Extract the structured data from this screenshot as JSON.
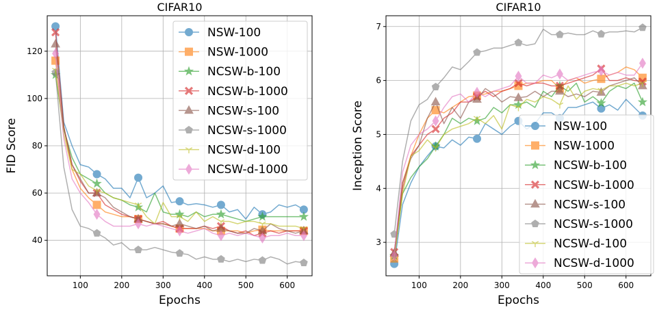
{
  "chart_data": [
    {
      "type": "line",
      "title": "CIFAR10",
      "xlabel": "Epochs",
      "ylabel": "FID Score",
      "xlim": [
        20,
        660
      ],
      "ylim": [
        25,
        135
      ],
      "xticks": [
        100,
        200,
        300,
        400,
        500,
        600
      ],
      "yticks": [
        40,
        60,
        80,
        100,
        120
      ],
      "grid": true,
      "legend_position": "top-right",
      "x": [
        40,
        60,
        80,
        100,
        120,
        140,
        160,
        180,
        200,
        220,
        240,
        260,
        280,
        300,
        320,
        340,
        360,
        380,
        400,
        420,
        440,
        460,
        480,
        500,
        520,
        540,
        560,
        580,
        600,
        620,
        640
      ],
      "series": [
        {
          "name": "NSW-100",
          "color": "#1f77b4",
          "marker": "circle",
          "values": [
            130.5,
            90,
            80,
            72,
            71,
            68,
            66,
            62,
            62,
            58,
            66.5,
            58,
            60,
            63,
            56,
            56.5,
            55,
            55.5,
            55,
            54,
            55,
            52,
            53,
            49,
            54,
            51,
            52,
            55,
            54,
            55,
            53
          ]
        },
        {
          "name": "NSW-1000",
          "color": "#ff7f0e",
          "marker": "square",
          "values": [
            116,
            88,
            70,
            62,
            58,
            55,
            52,
            51,
            50,
            50,
            49,
            48,
            47,
            47,
            46,
            45,
            45,
            45,
            45,
            44,
            44,
            44,
            44,
            43,
            44,
            44.5,
            44,
            44,
            44,
            44,
            44
          ]
        },
        {
          "name": "NCSW-b-100",
          "color": "#2ca02c",
          "marker": "star",
          "values": [
            110,
            87,
            75,
            68,
            66,
            64,
            60,
            58,
            57,
            55,
            54,
            52,
            60,
            52,
            51,
            51,
            50,
            52,
            50,
            51,
            51,
            50,
            49,
            48,
            49,
            50,
            50,
            50,
            50,
            50,
            50
          ]
        },
        {
          "name": "NCSW-b-1000",
          "color": "#d62728",
          "marker": "x",
          "values": [
            128,
            88,
            72,
            65,
            60,
            60,
            55,
            53,
            51,
            50,
            49,
            48,
            47,
            48,
            46,
            45,
            45,
            45,
            46,
            45,
            46,
            44,
            43,
            44,
            42,
            43,
            44,
            43,
            44,
            44,
            44
          ]
        },
        {
          "name": "NCSW-s-100",
          "color": "#8c564b",
          "marker": "triangle",
          "values": [
            123,
            88,
            72,
            66,
            60,
            60,
            58,
            54,
            52,
            50,
            49,
            48,
            47,
            47,
            46,
            47,
            46,
            45,
            46,
            44,
            45,
            44,
            43,
            43,
            45,
            44,
            47,
            45,
            44,
            43,
            44
          ]
        },
        {
          "name": "NCSW-s-1000",
          "color": "#7f7f7f",
          "marker": "pentagon",
          "values": [
            111,
            71,
            53,
            46,
            45,
            43,
            41,
            38,
            39,
            36,
            36,
            36,
            37,
            36,
            35,
            34.5,
            34,
            32,
            33,
            32,
            32,
            31,
            32,
            31,
            32,
            31.5,
            33,
            32,
            30,
            31,
            30.5
          ]
        },
        {
          "name": "NCSW-d-100",
          "color": "#bcbd22",
          "marker": "tri_down",
          "values": [
            112,
            85,
            70,
            68,
            63,
            61,
            60,
            58,
            57,
            56,
            55,
            50,
            47,
            56,
            50,
            50,
            48,
            52,
            48,
            50,
            48,
            48,
            47,
            48,
            48,
            47,
            47,
            46,
            46,
            46,
            45
          ]
        },
        {
          "name": "NCSW-d-1000",
          "color": "#e377c2",
          "marker": "diamond",
          "values": [
            119,
            83,
            66,
            60,
            56,
            51,
            48,
            46,
            46,
            46,
            47,
            46,
            47,
            46,
            45,
            44,
            43,
            44,
            45,
            43,
            42,
            43,
            42,
            43,
            42,
            41,
            42,
            42,
            43,
            42,
            42
          ]
        }
      ]
    },
    {
      "type": "line",
      "title": "CIFAR10",
      "xlabel": "Epochs",
      "ylabel": "Inception Score",
      "xlim": [
        20,
        660
      ],
      "ylim": [
        2.38,
        7.2
      ],
      "xticks": [
        100,
        200,
        300,
        400,
        500,
        600
      ],
      "yticks": [
        3,
        4,
        5,
        6,
        7
      ],
      "grid": true,
      "legend_position": "lower-right",
      "x": [
        40,
        60,
        80,
        100,
        120,
        140,
        160,
        180,
        200,
        220,
        240,
        260,
        280,
        300,
        320,
        340,
        360,
        380,
        400,
        420,
        440,
        460,
        480,
        500,
        520,
        540,
        560,
        580,
        600,
        620,
        640
      ],
      "series": [
        {
          "name": "NSW-100",
          "color": "#1f77b4",
          "marker": "circle",
          "values": [
            2.6,
            3.7,
            4.1,
            4.4,
            4.6,
            4.78,
            4.75,
            4.9,
            4.8,
            4.95,
            4.92,
            5.2,
            5.1,
            5.0,
            5.15,
            5.25,
            5.1,
            5.2,
            5.4,
            5.4,
            5.3,
            5.5,
            5.5,
            5.55,
            5.6,
            5.48,
            5.55,
            5.45,
            5.65,
            5.5,
            5.35
          ]
        },
        {
          "name": "NSW-1000",
          "color": "#ff7f0e",
          "marker": "square",
          "values": [
            2.7,
            4.1,
            4.6,
            5.0,
            5.3,
            5.45,
            5.4,
            5.5,
            5.6,
            5.7,
            5.72,
            5.75,
            5.8,
            5.8,
            5.85,
            5.9,
            5.95,
            5.95,
            6.0,
            6.0,
            5.85,
            6.0,
            6.05,
            5.95,
            6.0,
            6.03,
            6.1,
            6.15,
            6.25,
            6.2,
            6.05
          ]
        },
        {
          "name": "NCSW-b-100",
          "color": "#2ca02c",
          "marker": "star",
          "values": [
            2.75,
            3.9,
            4.2,
            4.4,
            4.55,
            4.78,
            5.0,
            5.3,
            5.2,
            5.3,
            5.25,
            5.3,
            5.5,
            5.4,
            5.55,
            5.55,
            5.6,
            5.5,
            5.8,
            5.7,
            5.9,
            5.8,
            5.95,
            5.6,
            5.7,
            5.58,
            5.8,
            5.9,
            5.85,
            5.95,
            5.6
          ]
        },
        {
          "name": "NCSW-b-1000",
          "color": "#d62728",
          "marker": "x",
          "values": [
            2.82,
            4.0,
            4.6,
            4.8,
            5.0,
            5.1,
            5.3,
            5.4,
            5.6,
            5.6,
            5.7,
            5.8,
            5.7,
            5.8,
            5.85,
            5.95,
            5.9,
            5.95,
            5.95,
            5.9,
            5.9,
            5.95,
            6.0,
            6.05,
            6.1,
            6.22,
            6.0,
            6.0,
            6.05,
            6.0,
            5.98
          ]
        },
        {
          "name": "NCSW-s-100",
          "color": "#8c564b",
          "marker": "triangle",
          "values": [
            2.8,
            4.1,
            4.55,
            4.8,
            5.3,
            5.6,
            5.2,
            5.5,
            5.3,
            5.6,
            5.65,
            5.85,
            5.75,
            5.6,
            5.7,
            5.68,
            5.7,
            5.8,
            5.7,
            5.8,
            5.8,
            5.7,
            5.75,
            5.7,
            5.8,
            5.78,
            5.9,
            5.95,
            6.0,
            6.05,
            5.9
          ]
        },
        {
          "name": "NCSW-s-1000",
          "color": "#7f7f7f",
          "marker": "pentagon",
          "values": [
            3.15,
            4.5,
            5.25,
            5.55,
            5.65,
            5.88,
            6.05,
            6.25,
            6.2,
            6.35,
            6.52,
            6.55,
            6.6,
            6.6,
            6.65,
            6.7,
            6.65,
            6.68,
            6.95,
            6.85,
            6.85,
            6.88,
            6.85,
            6.85,
            6.92,
            6.86,
            6.9,
            6.9,
            6.92,
            6.9,
            6.98
          ]
        },
        {
          "name": "NCSW-d-100",
          "color": "#bcbd22",
          "marker": "tri_down",
          "values": [
            2.7,
            3.9,
            4.6,
            4.7,
            4.9,
            4.75,
            5.0,
            5.1,
            5.15,
            5.2,
            5.3,
            5.2,
            5.35,
            5.1,
            5.55,
            5.5,
            5.65,
            5.6,
            5.7,
            5.65,
            5.55,
            5.9,
            5.65,
            5.8,
            5.85,
            5.82,
            5.9,
            5.9,
            5.95,
            5.9,
            5.95
          ]
        },
        {
          "name": "NCSW-d-1000",
          "color": "#e377c2",
          "marker": "diamond",
          "values": [
            2.75,
            4.3,
            4.8,
            5.0,
            5.1,
            5.25,
            5.5,
            5.7,
            5.75,
            5.6,
            5.78,
            5.7,
            5.8,
            5.85,
            5.9,
            6.08,
            5.95,
            5.95,
            6.1,
            6.05,
            6.12,
            6.0,
            6.05,
            6.1,
            6.15,
            6.18,
            6.1,
            6.15,
            6.1,
            6.1,
            6.32
          ]
        }
      ]
    }
  ]
}
